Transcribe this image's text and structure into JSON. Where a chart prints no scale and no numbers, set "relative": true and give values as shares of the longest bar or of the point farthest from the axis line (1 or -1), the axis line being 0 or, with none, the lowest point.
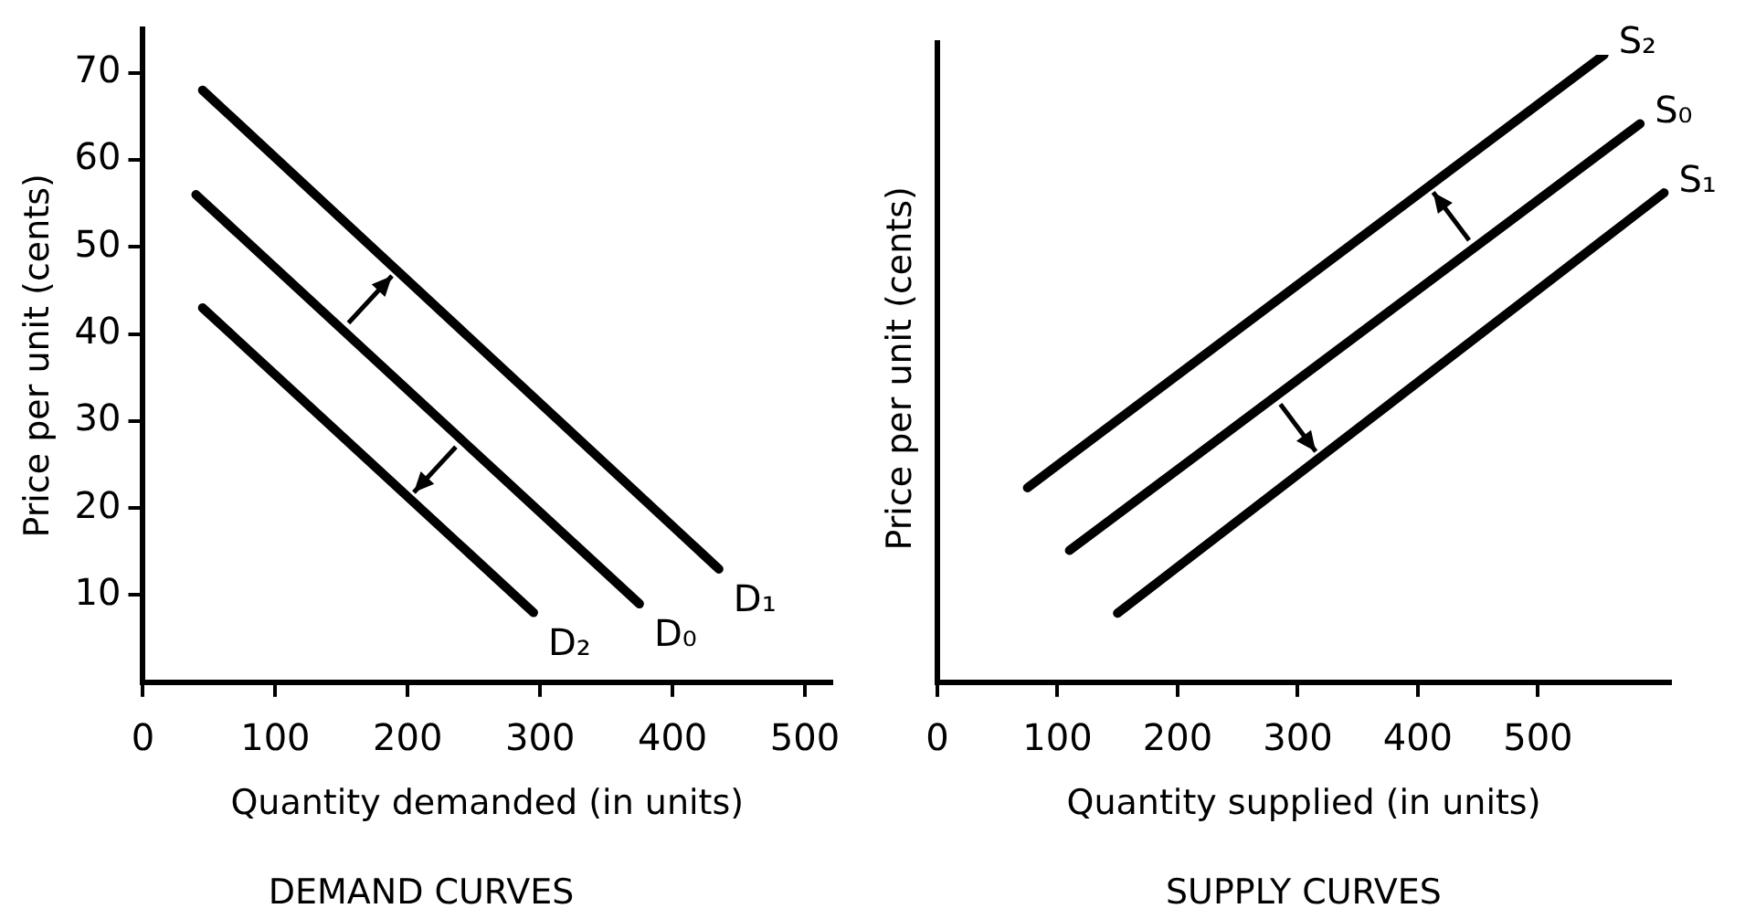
{
  "chart_data": [
    {
      "type": "line",
      "title": "DEMAND CURVES",
      "xlabel": "Quantity demanded (in units)",
      "ylabel": "Price per unit (cents)",
      "xlim": [
        0,
        520
      ],
      "ylim": [
        0,
        75
      ],
      "xticks": [
        0,
        100,
        200,
        300,
        400,
        500
      ],
      "yticks": [
        10,
        20,
        30,
        40,
        50,
        60,
        70
      ],
      "grid": false,
      "legend": false,
      "series": [
        {
          "name": "D₀",
          "color": "#000000",
          "x": [
            40,
            375
          ],
          "values": [
            56,
            9
          ]
        },
        {
          "name": "D₁",
          "color": "#000000",
          "x": [
            45,
            435
          ],
          "values": [
            68,
            13
          ]
        },
        {
          "name": "D₂",
          "color": "#000000",
          "x": [
            45,
            295
          ],
          "values": [
            43,
            8
          ]
        }
      ]
    },
    {
      "type": "line",
      "title": "SUPPLY CURVES",
      "xlabel": "Quantity supplied (in units)",
      "ylabel": "Price per unit (cents)",
      "xlim": [
        0,
        610
      ],
      "xticks": [
        0,
        100,
        200,
        300,
        400,
        500
      ],
      "relative": true,
      "tick_labels": "x",
      "grid": false,
      "legend": false,
      "series": [
        {
          "name": "S₀",
          "color": "#000000",
          "x": [
            110,
            585
          ],
          "values": [
            0.21,
            0.89
          ]
        },
        {
          "name": "S₁",
          "color": "#000000",
          "x": [
            150,
            605
          ],
          "values": [
            0.11,
            0.78
          ]
        },
        {
          "name": "S₂",
          "color": "#000000",
          "x": [
            75,
            555
          ],
          "values": [
            0.31,
            1
          ]
        }
      ]
    }
  ]
}
